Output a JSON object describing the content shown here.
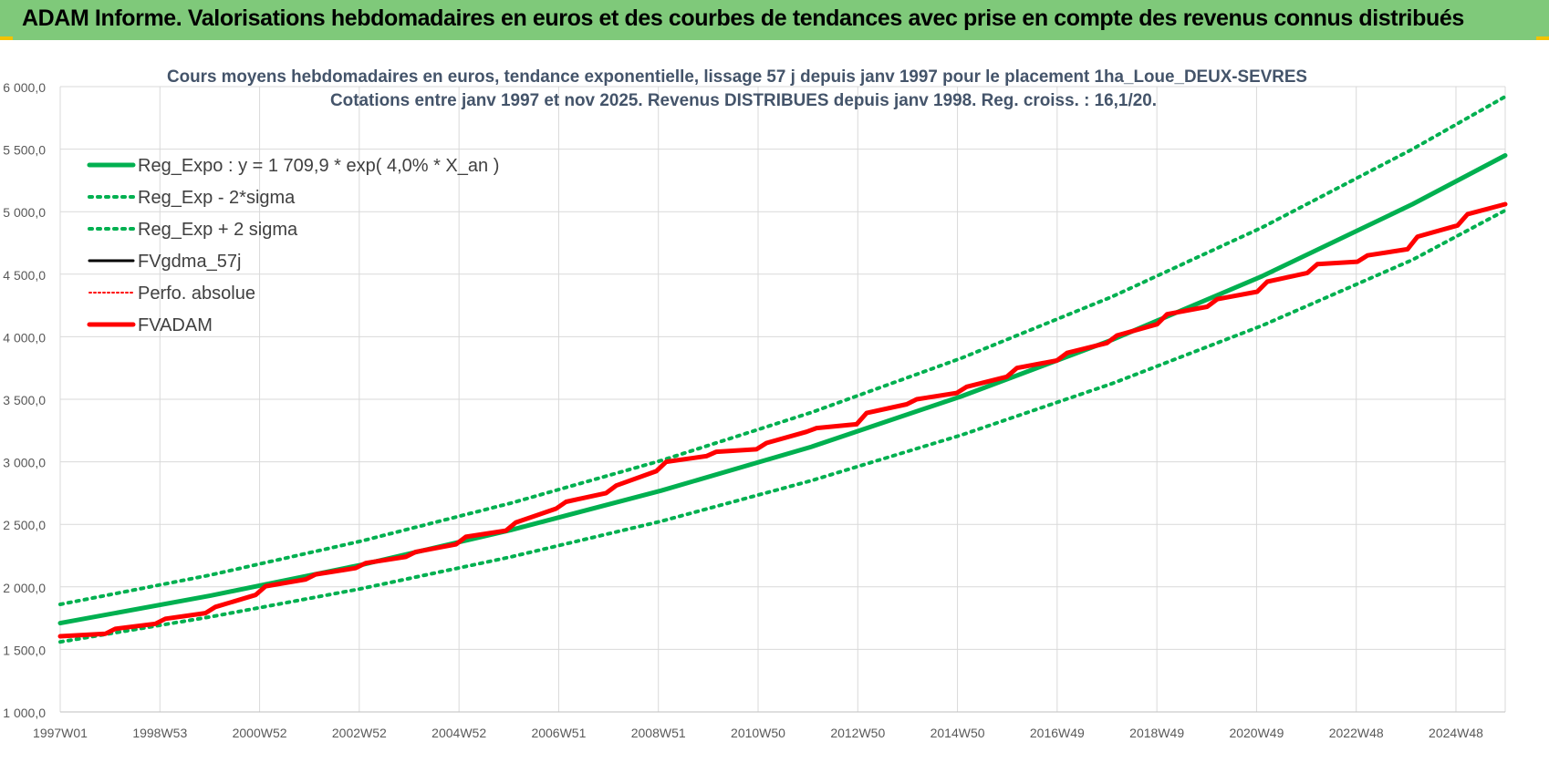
{
  "header": {
    "title": "ADAM Informe. Valorisations hebdomadaires en euros et des courbes de tendances avec prise en compte des revenus connus distribués"
  },
  "colors": {
    "banner": "#7fc97a",
    "green": "#00b050",
    "black": "#000000",
    "red": "#ff0000",
    "grid": "#d9d9d9"
  },
  "chart_data": {
    "type": "line",
    "title": "Cours moyens hebdomadaires en euros, tendance exponentielle, lissage 57 j depuis janv 1997  pour le placement 1ha_Loue_DEUX-SEVRES",
    "subtitle": "Cotations entre janv 1997 et nov 2025. Revenus  DISTRIBUES depuis janv 1998.  Reg. croiss. : 16,1/20.",
    "xlabel": "",
    "ylabel": "",
    "ylim": [
      1000,
      6000
    ],
    "yticks": [
      "1 000,0",
      "1 500,0",
      "2 000,0",
      "2 500,0",
      "3 000,0",
      "3 500,0",
      "4 000,0",
      "4 500,0",
      "5 000,0",
      "5 500,0",
      "6 000,0"
    ],
    "xlim": [
      1997.0,
      2025.85
    ],
    "xticks": [
      "1997W01",
      "1998W53",
      "2000W52",
      "2002W52",
      "2004W52",
      "2006W51",
      "2008W51",
      "2010W50",
      "2012W50",
      "2014W50",
      "2016W49",
      "2018W49",
      "2020W49",
      "2022W48",
      "2024W48"
    ],
    "grid": true,
    "legend_position": "top-left",
    "legend": [
      "Reg_Expo : y = 1 709,9 * exp( 4,0% *  X_an )",
      "Reg_Exp - 2*sigma",
      "Reg_Exp + 2 sigma",
      "FVgdma_57j",
      "Perfo. absolue",
      "FVADAM"
    ],
    "series": [
      {
        "name": "Reg_Expo : y = 1 709,9 * exp( 4,0% *  X_an )",
        "style": "solid-green",
        "x": [
          1997,
          2000,
          2003,
          2006,
          2009,
          2012,
          2015,
          2018,
          2021,
          2024,
          2025.85
        ],
        "y": [
          1710,
          1930,
          2175,
          2455,
          2770,
          3120,
          3525,
          3975,
          4485,
          5060,
          5450
        ]
      },
      {
        "name": "Reg_Exp - 2*sigma",
        "style": "dotted-green",
        "x": [
          1997,
          2000,
          2003,
          2006,
          2009,
          2012,
          2015,
          2018,
          2021,
          2024,
          2025.85
        ],
        "y": [
          1560,
          1760,
          1985,
          2240,
          2525,
          2850,
          3215,
          3625,
          4090,
          4615,
          5010
        ]
      },
      {
        "name": "Reg_Exp + 2 sigma",
        "style": "dotted-green",
        "x": [
          1997,
          2000,
          2003,
          2006,
          2009,
          2012,
          2015,
          2018,
          2021,
          2024,
          2025.85
        ],
        "y": [
          1860,
          2095,
          2365,
          2670,
          3010,
          3395,
          3830,
          4320,
          4875,
          5500,
          5920
        ]
      },
      {
        "name": "FVgdma_57j",
        "style": "solid-black",
        "x": [
          1997,
          1997.9,
          1998.1,
          1998.9,
          1999.1,
          1999.9,
          2000.1,
          2000.9,
          2001.1,
          2001.9,
          2002.1,
          2002.9,
          2003.1,
          2003.9,
          2004.1,
          2004.9,
          2005.1,
          2005.9,
          2006.1,
          2006.9,
          2007.1,
          2007.9,
          2008.1,
          2008.9,
          2009.1,
          2009.9,
          2010.1,
          2010.9,
          2011.1,
          2011.9,
          2012.1,
          2012.9,
          2013.1,
          2013.9,
          2014.1,
          2014.9,
          2015.1,
          2015.9,
          2016.1,
          2016.9,
          2017.1,
          2017.9,
          2018.1,
          2018.9,
          2019.1,
          2019.9,
          2020.1,
          2020.9,
          2021.1,
          2021.9,
          2022.1,
          2022.9,
          2023.1,
          2023.9,
          2024.1,
          2024.9,
          2025.1,
          2025.85
        ],
        "y": [
          1605,
          1625,
          1665,
          1705,
          1745,
          1790,
          1840,
          1935,
          2005,
          2060,
          2100,
          2150,
          2190,
          2240,
          2280,
          2340,
          2400,
          2450,
          2515,
          2625,
          2680,
          2750,
          2810,
          2925,
          3000,
          3045,
          3080,
          3100,
          3150,
          3240,
          3270,
          3300,
          3390,
          3460,
          3500,
          3550,
          3600,
          3680,
          3750,
          3810,
          3870,
          3950,
          4010,
          4100,
          4180,
          4240,
          4300,
          4360,
          4440,
          4510,
          4580,
          4600,
          4650,
          4700,
          4800,
          4890,
          4980,
          5060
        ]
      },
      {
        "name": "Perfo. absolue",
        "style": "dotted-red",
        "x": [
          1997,
          1997.9,
          1998.1,
          1998.9,
          1999.1,
          1999.9,
          2000.1,
          2000.9,
          2001.1,
          2001.9,
          2002.1,
          2002.9,
          2003.1,
          2003.9,
          2004.1,
          2004.9,
          2005.1,
          2005.9,
          2006.1,
          2006.9,
          2007.1,
          2007.9,
          2008.1,
          2008.9,
          2009.1,
          2009.9,
          2010.1,
          2010.9,
          2011.1,
          2011.9,
          2012.1,
          2012.9,
          2013.1,
          2013.9,
          2014.1,
          2014.9,
          2015.1,
          2015.9,
          2016.1,
          2016.9,
          2017.1,
          2017.9,
          2018.1,
          2018.9,
          2019.1,
          2019.9,
          2020.1,
          2020.9,
          2021.1,
          2021.9,
          2022.1,
          2022.9,
          2023.1,
          2023.9,
          2024.1,
          2024.9,
          2025.1,
          2025.85
        ],
        "y": [
          1605,
          1625,
          1665,
          1705,
          1745,
          1790,
          1840,
          1935,
          2005,
          2060,
          2100,
          2150,
          2190,
          2240,
          2280,
          2340,
          2400,
          2450,
          2515,
          2625,
          2680,
          2750,
          2810,
          2925,
          3000,
          3045,
          3080,
          3100,
          3150,
          3240,
          3270,
          3300,
          3390,
          3460,
          3500,
          3550,
          3600,
          3680,
          3750,
          3810,
          3870,
          3950,
          4010,
          4100,
          4180,
          4240,
          4300,
          4360,
          4440,
          4510,
          4580,
          4600,
          4650,
          4700,
          4800,
          4890,
          4980,
          5060
        ]
      },
      {
        "name": "FVADAM",
        "style": "solid-red",
        "x": [
          1997,
          1997.9,
          1998.1,
          1998.9,
          1999.1,
          1999.9,
          2000.1,
          2000.9,
          2001.1,
          2001.9,
          2002.1,
          2002.9,
          2003.1,
          2003.9,
          2004.1,
          2004.9,
          2005.1,
          2005.9,
          2006.1,
          2006.9,
          2007.1,
          2007.9,
          2008.1,
          2008.9,
          2009.1,
          2009.9,
          2010.1,
          2010.9,
          2011.1,
          2011.9,
          2012.1,
          2012.9,
          2013.1,
          2013.9,
          2014.1,
          2014.9,
          2015.1,
          2015.9,
          2016.1,
          2016.9,
          2017.1,
          2017.9,
          2018.1,
          2018.9,
          2019.1,
          2019.9,
          2020.1,
          2020.9,
          2021.1,
          2021.9,
          2022.1,
          2022.9,
          2023.1,
          2023.9,
          2024.1,
          2024.9,
          2025.1,
          2025.85
        ],
        "y": [
          1605,
          1625,
          1665,
          1705,
          1745,
          1790,
          1840,
          1935,
          2005,
          2060,
          2100,
          2150,
          2190,
          2240,
          2280,
          2340,
          2400,
          2450,
          2515,
          2625,
          2680,
          2750,
          2810,
          2925,
          3000,
          3045,
          3080,
          3100,
          3150,
          3240,
          3270,
          3300,
          3390,
          3460,
          3500,
          3550,
          3600,
          3680,
          3750,
          3810,
          3870,
          3950,
          4010,
          4100,
          4180,
          4240,
          4300,
          4360,
          4440,
          4510,
          4580,
          4600,
          4650,
          4700,
          4800,
          4890,
          4980,
          5060
        ]
      }
    ]
  }
}
